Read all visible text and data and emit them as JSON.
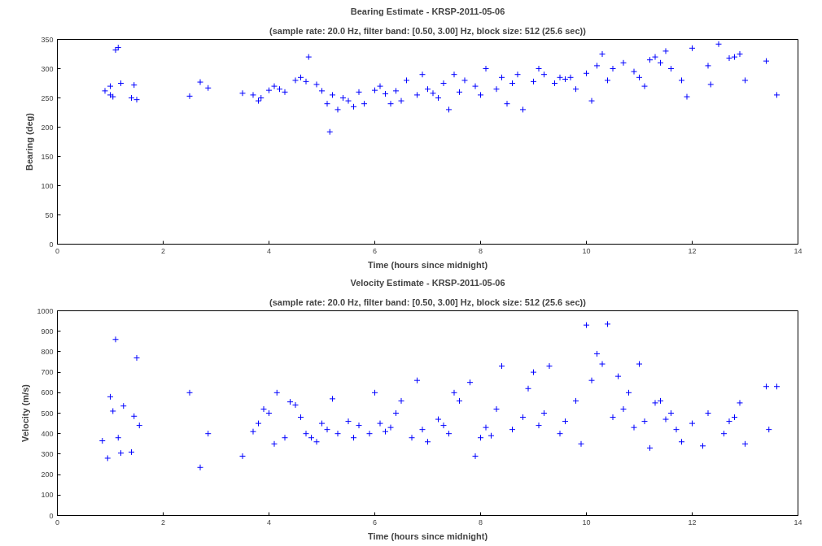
{
  "chart_data": [
    {
      "type": "scatter",
      "title": "Bearing Estimate - KRSP-2011-05-06",
      "subtitle": "(sample rate: 20.0 Hz, filter band: [0.50, 3.00] Hz, block size: 512 (25.6 sec))",
      "xlabel": "Time (hours since midnight)",
      "ylabel": "Bearing (deg)",
      "marker": "cross",
      "grid": false,
      "xlim": [
        0,
        14
      ],
      "xticks": [
        0,
        2,
        4,
        6,
        8,
        10,
        12,
        14
      ],
      "ylim": [
        0,
        350
      ],
      "yticks": [
        0,
        50,
        100,
        150,
        200,
        250,
        300,
        350
      ],
      "series": [
        {
          "color": "#0000ff",
          "x": [
            0.9,
            1.0,
            1.05,
            1.1,
            1.15,
            1.2,
            1.0,
            1.45,
            1.5,
            1.4,
            2.5,
            2.7,
            2.85,
            3.5,
            3.7,
            3.8,
            3.85,
            4.0,
            4.1,
            4.2,
            4.3,
            4.5,
            4.6,
            4.7,
            4.75,
            4.9,
            5.0,
            5.1,
            5.15,
            5.2,
            5.3,
            5.4,
            5.5,
            5.6,
            5.7,
            5.8,
            6.0,
            6.2,
            6.4,
            6.5,
            6.6,
            6.8,
            7.0,
            7.2,
            7.3,
            7.4,
            7.5,
            7.7,
            7.9,
            8.0,
            8.1,
            8.3,
            8.5,
            8.6,
            8.8,
            9.0,
            9.2,
            9.4,
            9.5,
            9.6,
            9.8,
            10.0,
            10.1,
            10.2,
            10.3,
            10.5,
            10.7,
            10.9,
            11.0,
            11.1,
            11.2,
            11.3,
            11.4,
            11.5,
            11.6,
            11.8,
            11.9,
            12.0,
            12.3,
            12.35,
            12.5,
            12.7,
            12.8,
            12.9,
            13.0,
            13.4,
            13.6,
            6.1,
            6.9,
            7.6,
            8.4,
            9.1,
            9.7,
            10.4,
            8.7,
            7.1,
            6.3
          ],
          "values": [
            262,
            255,
            252,
            332,
            336,
            275,
            270,
            272,
            247,
            250,
            253,
            277,
            267,
            258,
            255,
            245,
            250,
            263,
            270,
            265,
            260,
            280,
            285,
            278,
            320,
            273,
            262,
            240,
            192,
            255,
            230,
            250,
            245,
            235,
            260,
            240,
            263,
            257,
            262,
            245,
            280,
            255,
            265,
            250,
            275,
            230,
            290,
            280,
            270,
            255,
            300,
            265,
            240,
            275,
            230,
            278,
            290,
            275,
            285,
            282,
            265,
            292,
            245,
            305,
            325,
            300,
            310,
            295,
            285,
            270,
            315,
            320,
            310,
            330,
            300,
            280,
            252,
            335,
            305,
            273,
            342,
            318,
            320,
            325,
            280,
            313,
            255,
            270,
            290,
            260,
            285,
            300,
            285,
            280,
            290,
            258,
            240
          ]
        }
      ]
    },
    {
      "type": "scatter",
      "title": "Velocity Estimate - KRSP-2011-05-06",
      "subtitle": "(sample rate: 20.0 Hz, filter band: [0.50, 3.00] Hz, block size: 512 (25.6 sec))",
      "xlabel": "Time (hours since midnight)",
      "ylabel": "Velocity (m/s)",
      "marker": "cross",
      "grid": false,
      "xlim": [
        0,
        14
      ],
      "xticks": [
        0,
        2,
        4,
        6,
        8,
        10,
        12,
        14
      ],
      "ylim": [
        0,
        1000
      ],
      "yticks": [
        0,
        100,
        200,
        300,
        400,
        500,
        600,
        700,
        800,
        900,
        1000
      ],
      "series": [
        {
          "color": "#0000ff",
          "x": [
            0.85,
            0.95,
            1.0,
            1.05,
            1.1,
            1.15,
            1.2,
            1.25,
            1.4,
            1.45,
            1.5,
            1.55,
            2.5,
            2.7,
            2.85,
            3.5,
            3.7,
            3.8,
            3.9,
            4.0,
            4.1,
            4.15,
            4.3,
            4.4,
            4.5,
            4.6,
            4.7,
            4.8,
            4.9,
            5.0,
            5.1,
            5.2,
            5.3,
            5.5,
            5.7,
            5.9,
            6.0,
            6.1,
            6.3,
            6.4,
            6.5,
            6.7,
            6.8,
            6.9,
            7.0,
            7.2,
            7.4,
            7.5,
            7.6,
            7.8,
            7.9,
            8.0,
            8.1,
            8.3,
            8.4,
            8.6,
            8.8,
            8.9,
            9.0,
            9.1,
            9.3,
            9.5,
            9.6,
            9.8,
            9.9,
            10.0,
            10.1,
            10.2,
            10.3,
            10.4,
            10.5,
            10.6,
            10.8,
            10.9,
            11.0,
            11.1,
            11.2,
            11.3,
            11.4,
            11.5,
            11.6,
            11.7,
            12.0,
            12.2,
            12.3,
            12.6,
            12.7,
            12.8,
            12.9,
            13.0,
            13.4,
            13.6,
            13.45,
            7.3,
            8.2,
            9.2,
            10.7,
            6.2,
            5.6,
            11.8
          ],
          "values": [
            365,
            280,
            580,
            510,
            860,
            380,
            305,
            535,
            310,
            485,
            770,
            440,
            600,
            235,
            400,
            290,
            410,
            450,
            520,
            500,
            350,
            600,
            380,
            555,
            540,
            480,
            400,
            380,
            360,
            450,
            420,
            570,
            400,
            460,
            440,
            400,
            600,
            450,
            430,
            500,
            560,
            380,
            660,
            420,
            360,
            470,
            400,
            600,
            560,
            650,
            290,
            380,
            430,
            520,
            730,
            420,
            480,
            620,
            700,
            440,
            730,
            400,
            460,
            560,
            350,
            930,
            660,
            790,
            740,
            935,
            480,
            680,
            600,
            430,
            740,
            460,
            330,
            550,
            560,
            470,
            500,
            420,
            450,
            340,
            500,
            400,
            460,
            480,
            550,
            350,
            630,
            630,
            420,
            440,
            390,
            500,
            520,
            410,
            380,
            360
          ]
        }
      ]
    }
  ]
}
